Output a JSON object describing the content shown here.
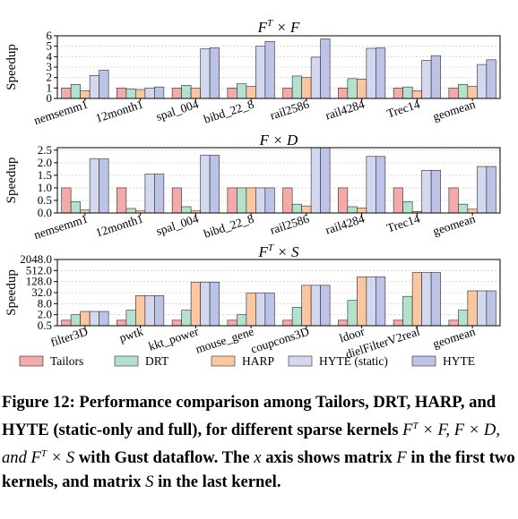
{
  "chart_data": [
    {
      "type": "bar",
      "title": "F^T × F",
      "ylabel": "Speedup",
      "ylim": [
        0,
        6
      ],
      "yscale": "linear",
      "yticks": [
        0,
        1,
        2,
        3,
        4,
        5,
        6
      ],
      "ytick_labels": [
        "0",
        "1",
        "2",
        "3",
        "4",
        "5",
        "6"
      ],
      "categories": [
        "nemsemm1",
        "12month1",
        "spal_004",
        "bibd_22_8",
        "rail2586",
        "rail4284",
        "Trec14",
        "geomean"
      ],
      "series": [
        {
          "name": "Tailors",
          "values": [
            1.0,
            1.0,
            1.0,
            1.0,
            1.0,
            1.0,
            1.0,
            1.0
          ]
        },
        {
          "name": "DRT",
          "values": [
            1.35,
            0.9,
            1.25,
            1.4,
            2.15,
            1.9,
            1.1,
            1.35
          ]
        },
        {
          "name": "HARP",
          "values": [
            0.75,
            0.85,
            1.0,
            1.15,
            2.0,
            1.85,
            0.75,
            1.15
          ]
        },
        {
          "name": "HYTE (static)",
          "values": [
            2.2,
            1.0,
            4.75,
            5.0,
            3.95,
            4.8,
            3.65,
            3.25
          ]
        },
        {
          "name": "HYTE",
          "values": [
            2.7,
            1.1,
            4.85,
            5.45,
            5.7,
            4.85,
            4.1,
            3.7
          ]
        }
      ]
    },
    {
      "type": "bar",
      "title": "F × D",
      "ylabel": "Speedup",
      "ylim": [
        0,
        2.6
      ],
      "yscale": "linear",
      "yticks": [
        0,
        0.5,
        1,
        1.5,
        2,
        2.5
      ],
      "ytick_labels": [
        "0.0",
        "0.5",
        "1.0",
        "1.5",
        "2.0",
        "2.5"
      ],
      "categories": [
        "nemsemm1",
        "12month1",
        "spal_004",
        "bibd_22_8",
        "rail2586",
        "rail4284",
        "Trec14",
        "geomean"
      ],
      "series": [
        {
          "name": "Tailors",
          "values": [
            1.0,
            1.0,
            1.0,
            1.0,
            1.0,
            1.0,
            1.0,
            1.0
          ]
        },
        {
          "name": "DRT",
          "values": [
            0.45,
            0.18,
            0.25,
            1.0,
            0.35,
            0.25,
            0.45,
            0.35
          ]
        },
        {
          "name": "HARP",
          "values": [
            0.12,
            0.08,
            0.08,
            1.0,
            0.28,
            0.2,
            0.06,
            0.15
          ]
        },
        {
          "name": "HYTE (static)",
          "values": [
            2.15,
            1.55,
            2.3,
            1.0,
            2.6,
            2.25,
            1.7,
            1.85
          ]
        },
        {
          "name": "HYTE",
          "values": [
            2.15,
            1.55,
            2.3,
            1.0,
            2.6,
            2.25,
            1.7,
            1.85
          ]
        }
      ]
    },
    {
      "type": "bar",
      "title": "F^T × S",
      "ylabel": "Speedup",
      "ylim": [
        0.5,
        2048
      ],
      "yscale": "log2",
      "yticks": [
        0.5,
        2,
        8,
        32,
        128,
        512,
        2048
      ],
      "ytick_labels": [
        "0.5",
        "2.0",
        "8.0",
        "32.0",
        "128.0",
        "512.0",
        "2048.0"
      ],
      "categories": [
        "filter3D",
        "pwtk",
        "kkt_power",
        "mouse_gene",
        "coupcons3D",
        "ldoor",
        "dielFilterV2real",
        "geomean"
      ],
      "series": [
        {
          "name": "Tailors",
          "values": [
            1.0,
            1.0,
            1.0,
            1.0,
            1.0,
            1.0,
            1.0,
            1.0
          ]
        },
        {
          "name": "DRT",
          "values": [
            2.0,
            3.5,
            3.5,
            2.0,
            5.0,
            12.0,
            20.0,
            3.5
          ]
        },
        {
          "name": "HARP",
          "values": [
            3.0,
            22.0,
            120.0,
            30.0,
            80.0,
            230.0,
            400.0,
            40.0
          ]
        },
        {
          "name": "HYTE (static)",
          "values": [
            3.0,
            22.0,
            120.0,
            30.0,
            80.0,
            230.0,
            400.0,
            40.0
          ]
        },
        {
          "name": "HYTE",
          "values": [
            3.0,
            22.0,
            120.0,
            30.0,
            80.0,
            230.0,
            400.0,
            40.0
          ]
        }
      ]
    }
  ],
  "legend": [
    {
      "name": "Tailors",
      "color": "#f4aaa8"
    },
    {
      "name": "DRT",
      "color": "#b2e2cc"
    },
    {
      "name": "HARP",
      "color": "#fbc7a0"
    },
    {
      "name": "HYTE (static)",
      "color": "#d4d8ee"
    },
    {
      "name": "HYTE",
      "color": "#bcc3e6"
    }
  ],
  "caption": {
    "label": "Figure 12:",
    "text1": "Performance comparison among Tailors, DRT, HARP, and HYTE (static-only and full), for different sparse kernels",
    "math1": "F",
    "sup1": "T",
    "mid1": "× F, F × D, and",
    "math2": "F",
    "sup2": "T",
    "mid2": "× S",
    "text2": "with Gust dataflow. The",
    "mathx": "x",
    "text3": "axis shows matrix",
    "mathF": "F",
    "text4": "in the first two kernels, and matrix",
    "mathS": "S",
    "text5": "in the last kernel."
  }
}
